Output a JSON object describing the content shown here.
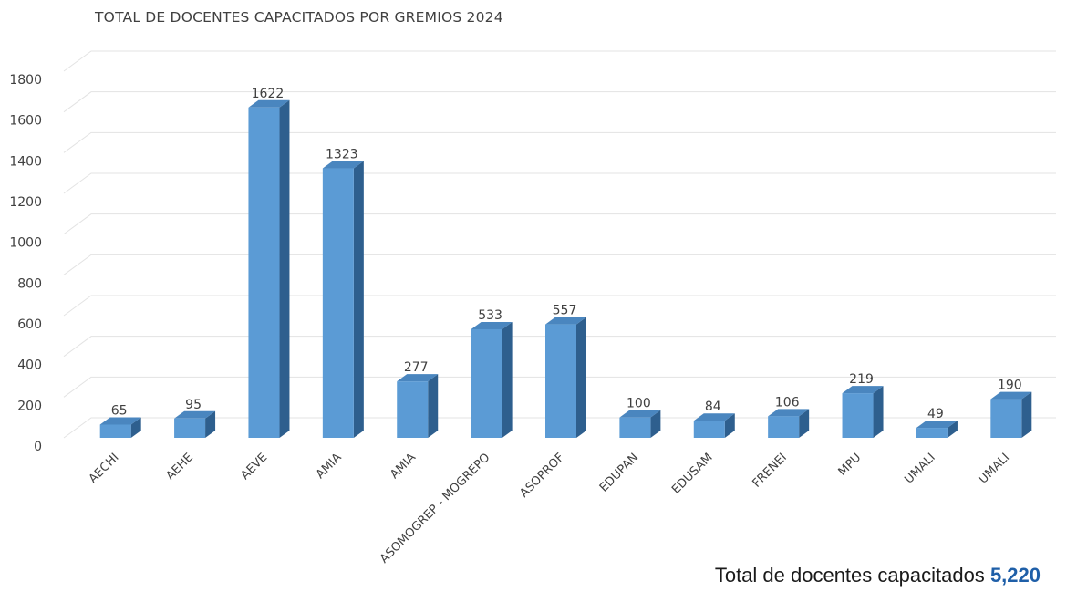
{
  "chart_data": {
    "type": "bar",
    "title": "TOTAL DE DOCENTES CAPACITADOS POR GREMIOS 2024",
    "xlabel": "",
    "ylabel": "",
    "categories": [
      "AECHI",
      "AEHE",
      "AEVE",
      "AMIA",
      "AMIA",
      "ASOMOGREP - MOGREPO",
      "ASOPROF",
      "EDUPAN",
      "EDUSAM",
      "FRENEI",
      "MPU",
      "UMALI",
      "UMALI"
    ],
    "values": [
      65,
      95,
      1622,
      1323,
      277,
      533,
      557,
      100,
      84,
      106,
      219,
      49,
      190
    ],
    "ylim": [
      0,
      1800
    ],
    "yticks": [
      0,
      200,
      400,
      600,
      800,
      1000,
      1200,
      1400,
      1600,
      1800
    ],
    "grid": true,
    "legend": "none",
    "data_labels": true,
    "colors": {
      "bar_front": "#5b9bd5",
      "bar_side": "#2e5f8e",
      "bar_top": "#4a86bf",
      "grid": "#e3e3e3"
    }
  },
  "footer": {
    "label": "Total de docentes capacitados",
    "value": "5,220",
    "value_color": "#1f5fa8"
  }
}
